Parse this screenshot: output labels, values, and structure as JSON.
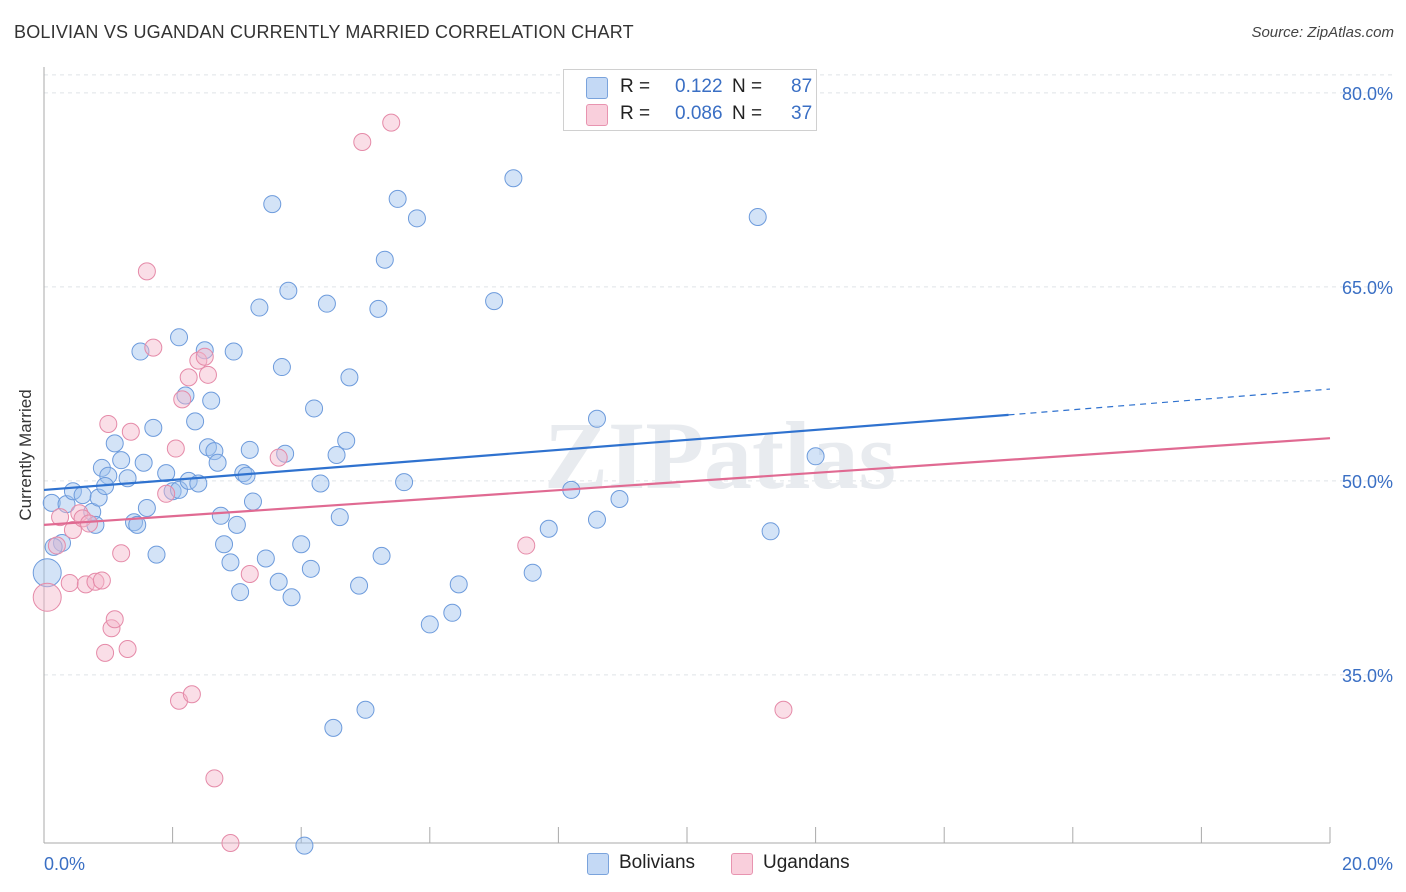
{
  "title": "BOLIVIAN VS UGANDAN CURRENTLY MARRIED CORRELATION CHART",
  "source": "Source: ZipAtlas.com",
  "watermark": "ZIPatlas",
  "legend": {
    "r_label": "R =",
    "n_label": "N =",
    "rows": [
      {
        "name": "Bolivians",
        "r": "0.122",
        "n": "87",
        "color": "#9dc0ee",
        "edge": "#5b8fd6"
      },
      {
        "name": "Ugandans",
        "r": "0.086",
        "n": "37",
        "color": "#f5b6c9",
        "edge": "#e27b9d"
      }
    ]
  },
  "chart_data": {
    "type": "scatter",
    "title": "BOLIVIAN VS UGANDAN CURRENTLY MARRIED CORRELATION CHART",
    "xlabel": "",
    "ylabel": "Currently Married",
    "xlim": [
      0,
      20
    ],
    "ylim": [
      22,
      82
    ],
    "x_tick_labels": [
      "0.0%",
      "20.0%"
    ],
    "y_ticks": [
      35,
      50,
      65,
      80
    ],
    "y_tick_labels": [
      "35.0%",
      "50.0%",
      "65.0%",
      "80.0%"
    ],
    "grid": "horizontal dashed",
    "legend_position": "top-center and bottom-center",
    "series": [
      {
        "name": "Bolivians",
        "color": "#5b8fd6",
        "trend": {
          "x": [
            0,
            15
          ],
          "y": [
            49.3,
            55.1
          ],
          "dashed_to_x": 20,
          "dashed_to_y": 57.1
        },
        "points": [
          [
            0.12,
            48.3
          ],
          [
            0.28,
            45.2
          ],
          [
            0.35,
            48.2
          ],
          [
            0.45,
            49.2
          ],
          [
            0.6,
            48.9
          ],
          [
            0.75,
            47.6
          ],
          [
            0.9,
            51.0
          ],
          [
            0.85,
            48.7
          ],
          [
            1.0,
            50.4
          ],
          [
            0.8,
            46.6
          ],
          [
            0.95,
            49.6
          ],
          [
            1.1,
            52.9
          ],
          [
            1.2,
            51.6
          ],
          [
            1.3,
            50.2
          ],
          [
            1.4,
            46.8
          ],
          [
            1.45,
            46.6
          ],
          [
            1.5,
            60.0
          ],
          [
            1.55,
            51.4
          ],
          [
            1.6,
            47.9
          ],
          [
            1.75,
            44.3
          ],
          [
            1.7,
            54.1
          ],
          [
            1.9,
            50.6
          ],
          [
            2.0,
            49.2
          ],
          [
            2.1,
            49.3
          ],
          [
            2.1,
            61.1
          ],
          [
            2.2,
            56.6
          ],
          [
            2.25,
            50.0
          ],
          [
            2.35,
            54.6
          ],
          [
            2.4,
            49.8
          ],
          [
            2.5,
            60.1
          ],
          [
            2.55,
            52.6
          ],
          [
            2.6,
            56.2
          ],
          [
            2.65,
            52.3
          ],
          [
            2.7,
            51.4
          ],
          [
            2.75,
            47.3
          ],
          [
            2.8,
            45.1
          ],
          [
            2.9,
            43.7
          ],
          [
            2.95,
            60.0
          ],
          [
            3.0,
            46.6
          ],
          [
            3.05,
            41.4
          ],
          [
            3.1,
            50.6
          ],
          [
            3.15,
            50.4
          ],
          [
            3.2,
            52.4
          ],
          [
            3.25,
            48.4
          ],
          [
            3.35,
            63.4
          ],
          [
            3.45,
            44.0
          ],
          [
            3.55,
            71.4
          ],
          [
            3.65,
            42.2
          ],
          [
            3.7,
            58.8
          ],
          [
            3.75,
            52.1
          ],
          [
            3.8,
            64.7
          ],
          [
            3.85,
            41.0
          ],
          [
            4.0,
            45.1
          ],
          [
            4.05,
            21.8
          ],
          [
            4.15,
            43.2
          ],
          [
            4.2,
            55.6
          ],
          [
            4.3,
            49.8
          ],
          [
            4.4,
            63.7
          ],
          [
            4.5,
            30.9
          ],
          [
            4.55,
            52.0
          ],
          [
            4.6,
            47.2
          ],
          [
            4.7,
            53.1
          ],
          [
            4.75,
            58.0
          ],
          [
            4.9,
            41.9
          ],
          [
            5.0,
            32.3
          ],
          [
            5.2,
            63.3
          ],
          [
            5.25,
            44.2
          ],
          [
            5.3,
            67.1
          ],
          [
            5.5,
            71.8
          ],
          [
            5.6,
            49.9
          ],
          [
            5.8,
            70.3
          ],
          [
            6.0,
            38.9
          ],
          [
            6.35,
            39.8
          ],
          [
            6.45,
            42.0
          ],
          [
            7.0,
            63.9
          ],
          [
            7.3,
            73.4
          ],
          [
            7.6,
            42.9
          ],
          [
            7.85,
            46.3
          ],
          [
            8.2,
            49.3
          ],
          [
            8.6,
            54.8
          ],
          [
            8.6,
            47.0
          ],
          [
            8.95,
            48.6
          ],
          [
            11.1,
            70.4
          ],
          [
            11.3,
            46.1
          ],
          [
            12.0,
            51.9
          ],
          [
            0.05,
            42.9
          ],
          [
            0.15,
            44.9
          ]
        ]
      },
      {
        "name": "Ugandans",
        "color": "#e27b9d",
        "trend": {
          "x": [
            0,
            20
          ],
          "y": [
            46.6,
            53.3
          ]
        },
        "points": [
          [
            0.05,
            41.0
          ],
          [
            0.2,
            45.0
          ],
          [
            0.25,
            47.2
          ],
          [
            0.4,
            42.1
          ],
          [
            0.45,
            46.2
          ],
          [
            0.55,
            47.5
          ],
          [
            0.6,
            47.1
          ],
          [
            0.65,
            42.0
          ],
          [
            0.7,
            46.7
          ],
          [
            0.8,
            42.2
          ],
          [
            0.9,
            42.3
          ],
          [
            0.95,
            36.7
          ],
          [
            1.0,
            54.4
          ],
          [
            1.05,
            38.6
          ],
          [
            1.1,
            39.3
          ],
          [
            1.2,
            44.4
          ],
          [
            1.3,
            37.0
          ],
          [
            1.35,
            53.8
          ],
          [
            1.6,
            66.2
          ],
          [
            1.7,
            60.3
          ],
          [
            1.9,
            49.0
          ],
          [
            2.05,
            52.5
          ],
          [
            2.1,
            33.0
          ],
          [
            2.15,
            56.3
          ],
          [
            2.25,
            58.0
          ],
          [
            2.3,
            33.5
          ],
          [
            2.4,
            59.3
          ],
          [
            2.5,
            59.6
          ],
          [
            2.55,
            58.2
          ],
          [
            2.65,
            27.0
          ],
          [
            2.9,
            22.0
          ],
          [
            3.2,
            42.8
          ],
          [
            3.65,
            51.8
          ],
          [
            4.95,
            76.2
          ],
          [
            5.4,
            77.7
          ],
          [
            7.5,
            45.0
          ],
          [
            11.5,
            32.3
          ]
        ]
      }
    ]
  }
}
